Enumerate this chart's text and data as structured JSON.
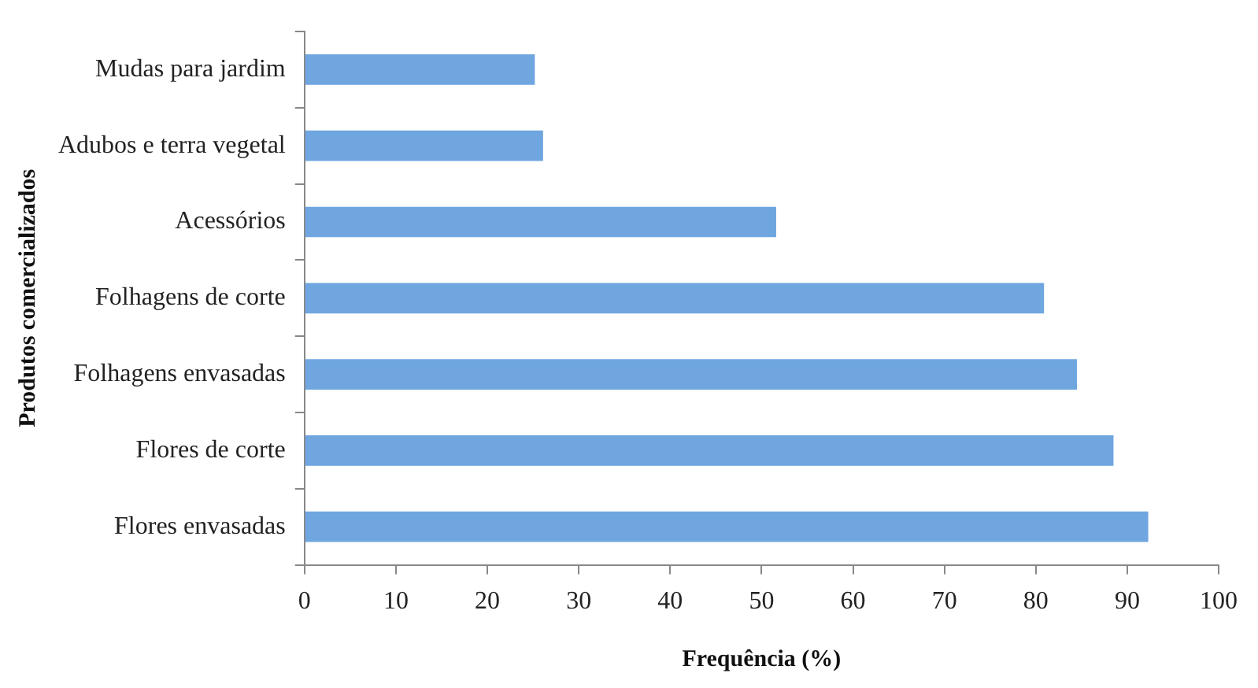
{
  "chart_data": {
    "type": "bar",
    "orientation": "horizontal",
    "xlabel": "Frequência (%)",
    "ylabel": "Produtos comercializados",
    "categories": [
      "Mudas para jardim",
      "Adubos e terra vegetal",
      "Acessórios",
      "Folhagens de corte",
      "Folhagens envasadas",
      "Flores de corte",
      "Flores envasadas"
    ],
    "values": [
      25.2,
      26.1,
      51.6,
      80.9,
      84.5,
      88.5,
      92.3
    ],
    "color": "#6fa6e0",
    "xlim": [
      0,
      100
    ],
    "xticks": [
      0,
      10,
      20,
      30,
      40,
      50,
      60,
      70,
      80,
      90,
      100
    ],
    "grid": false,
    "legend": false
  }
}
